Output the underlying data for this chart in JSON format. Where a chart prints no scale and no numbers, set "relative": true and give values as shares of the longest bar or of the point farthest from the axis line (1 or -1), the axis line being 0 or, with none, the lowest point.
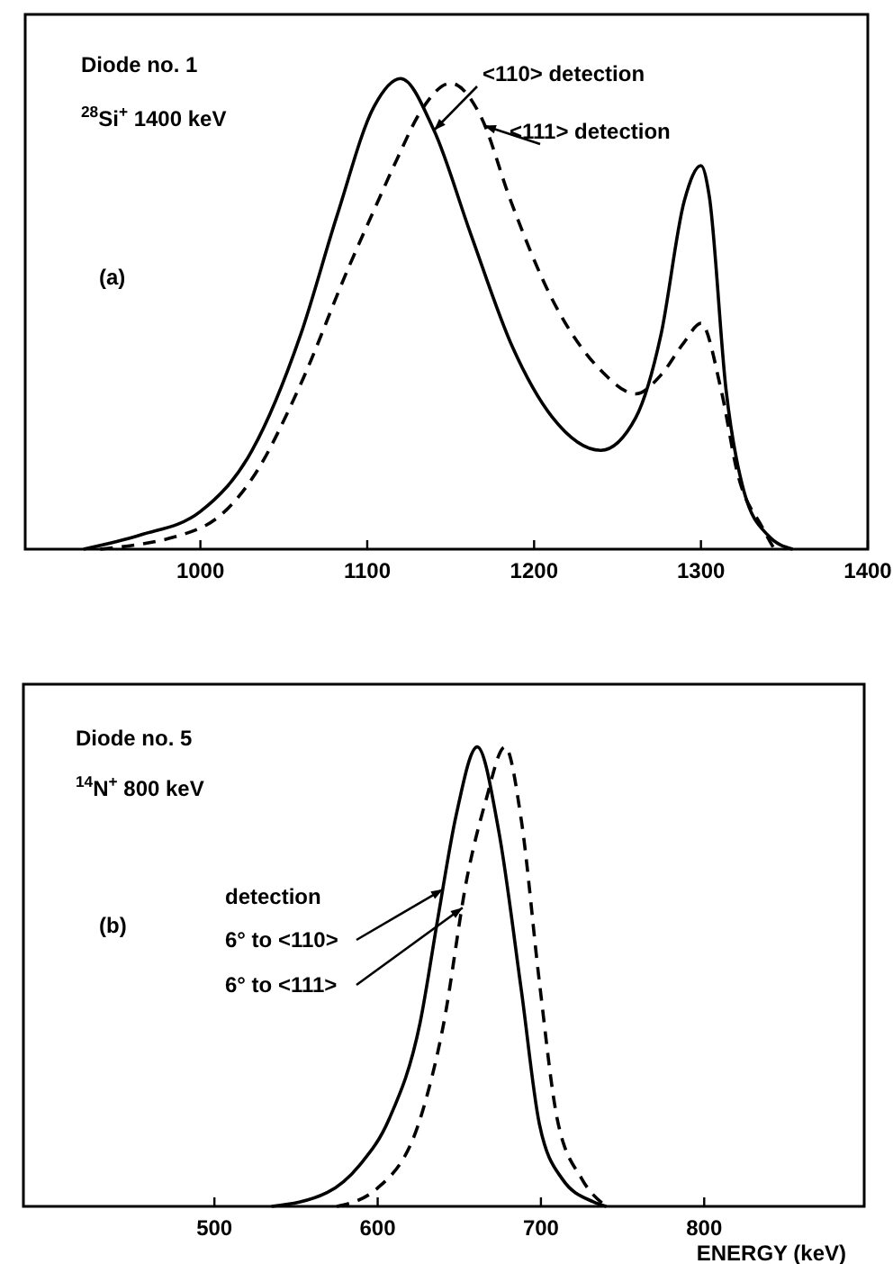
{
  "chart_data": [
    {
      "type": "line",
      "relative": true,
      "annotations": [
        "Diode no. 1",
        "$^{28}$Si$^{+}$ 1400 keV",
        "(a)",
        {
          "text": "<110> detection",
          "x": 1140,
          "y": 0.89
        },
        {
          "text": "<111> detection",
          "x": 1170,
          "y": 0.9
        }
      ],
      "xlim": [
        895,
        1400
      ],
      "xticks": [
        1000,
        1100,
        1200,
        1300,
        1400
      ],
      "grid": false,
      "marker": "none",
      "series": [
        {
          "color": "#000000",
          "line_style": "solid",
          "x": [
            930,
            964,
            1000,
            1031,
            1060,
            1082,
            1104,
            1120,
            1140,
            1162,
            1187,
            1211,
            1240,
            1261,
            1276,
            1290,
            1300,
            1305,
            1315,
            1326,
            1340,
            1355
          ],
          "values": [
            0,
            0.03,
            0.08,
            0.21,
            0.455,
            0.71,
            0.94,
            1,
            0.89,
            0.67,
            0.43,
            0.28,
            0.21,
            0.28,
            0.455,
            0.74,
            0.815,
            0.75,
            0.34,
            0.12,
            0.03,
            0
          ]
        },
        {
          "color": "#000000",
          "line_style": "dashed",
          "x": [
            940,
            1000,
            1031,
            1060,
            1089,
            1104,
            1118,
            1132,
            1150,
            1168,
            1186,
            1211,
            1240,
            1261,
            1276,
            1290,
            1300,
            1312,
            1322,
            1337,
            1344
          ],
          "values": [
            0,
            0.045,
            0.15,
            0.35,
            0.6,
            0.72,
            0.83,
            0.93,
            0.99,
            0.92,
            0.74,
            0.53,
            0.38,
            0.33,
            0.37,
            0.44,
            0.48,
            0.34,
            0.16,
            0.045,
            0
          ]
        }
      ]
    },
    {
      "type": "line",
      "relative": true,
      "xlabel": "ENERGY  (keV)",
      "annotations": [
        "Diode no. 5",
        "$^{14}$N$^{+}$ 800 keV",
        "(b)",
        "detection",
        {
          "text": "6° to <110>",
          "x": 640,
          "y": 0.69
        },
        {
          "text": "6° to <111>",
          "x": 652,
          "y": 0.65
        }
      ],
      "xlim": [
        383,
        898
      ],
      "xticks": [
        500,
        600,
        700,
        800
      ],
      "grid": false,
      "marker": "none",
      "series": [
        {
          "color": "#000000",
          "line_style": "solid",
          "x": [
            535,
            569,
            589,
            607,
            626,
            637,
            648,
            661,
            674,
            688,
            699,
            713,
            732,
            740
          ],
          "values": [
            0,
            0.03,
            0.09,
            0.19,
            0.4,
            0.63,
            0.85,
            1,
            0.82,
            0.47,
            0.18,
            0.06,
            0.01,
            0
          ]
        },
        {
          "color": "#000000",
          "line_style": "dashed",
          "x": [
            575,
            600,
            626,
            640,
            655,
            666,
            678,
            688,
            699,
            710,
            725,
            740
          ],
          "values": [
            0,
            0.04,
            0.19,
            0.39,
            0.72,
            0.88,
            1,
            0.84,
            0.49,
            0.19,
            0.06,
            0
          ]
        }
      ]
    }
  ]
}
